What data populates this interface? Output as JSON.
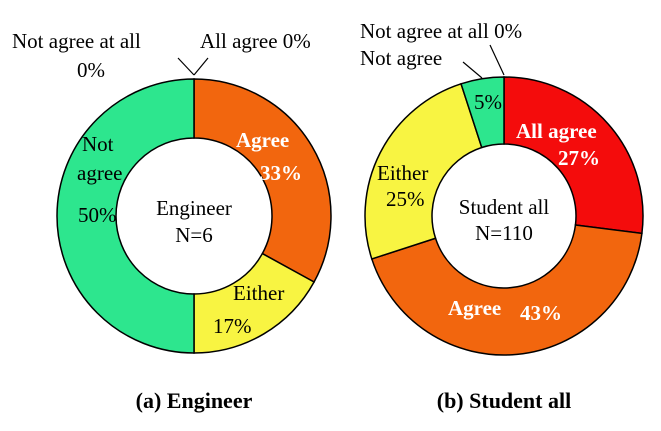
{
  "chart_data": [
    {
      "type": "pie",
      "title": "(a) Engineer",
      "center_label": [
        "Engineer",
        "N=6"
      ],
      "slices": [
        {
          "name": "Agree",
          "value": 33,
          "color": "#f2660e"
        },
        {
          "name": "Either",
          "value": 17,
          "color": "#f8f442"
        },
        {
          "name": "Not agree",
          "value": 50,
          "color": "#2de68e"
        },
        {
          "name": "Not agree at all",
          "value": 0,
          "color": "#2de68e"
        },
        {
          "name": "All agree",
          "value": 0,
          "color": "#f40c0c"
        }
      ],
      "labels": {
        "agree_name": "Agree",
        "agree_pct": "33%",
        "either_name": "Either",
        "either_pct": "17%",
        "notagree_name1": "Not",
        "notagree_name2": "agree",
        "notagree_pct": "50%",
        "notagreeall_name": "Not agree at all",
        "notagreeall_pct": "0%",
        "allagree": "All agree 0%"
      }
    },
    {
      "type": "pie",
      "title": "(b) Student all",
      "center_label": [
        "Student all",
        "N=110"
      ],
      "slices": [
        {
          "name": "All agree",
          "value": 27,
          "color": "#f40c0c"
        },
        {
          "name": "Agree",
          "value": 43,
          "color": "#f2660e"
        },
        {
          "name": "Either",
          "value": 25,
          "color": "#f8f442"
        },
        {
          "name": "Not agree",
          "value": 5,
          "color": "#2de68e"
        },
        {
          "name": "Not agree at all",
          "value": 0,
          "color": "#2de68e"
        }
      ],
      "labels": {
        "allagree_name": "All agree",
        "allagree_pct": "27%",
        "agree_name": "Agree",
        "agree_pct": "43%",
        "either_name": "Either",
        "either_pct": "25%",
        "notagree_name": "Not agree",
        "notagree_pct": "5%",
        "notagreeall": "Not agree at all 0%"
      }
    }
  ]
}
